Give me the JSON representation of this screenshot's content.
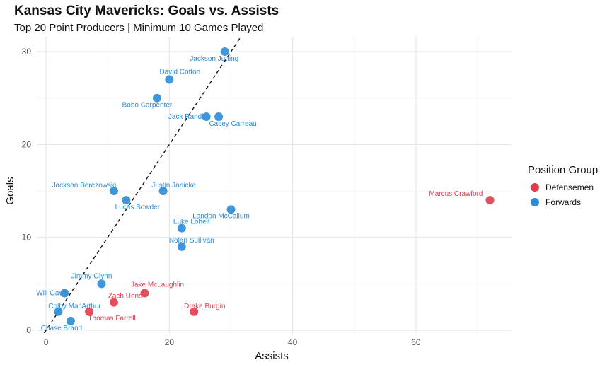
{
  "chart_data": {
    "type": "scatter",
    "title": "Kansas City Mavericks: Goals vs. Assists",
    "subtitle": "Top 20 Point Producers | Minimum 10 Games Played",
    "xlabel": "Assists",
    "ylabel": "Goals",
    "xlim": [
      -1.5,
      75.5
    ],
    "ylim": [
      -0.3,
      31.6
    ],
    "xticks": [
      0,
      20,
      40,
      60
    ],
    "yticks": [
      0,
      10,
      20,
      30
    ],
    "grid": true,
    "legend_title": "Position Group",
    "legend_position": "right",
    "reference_line": {
      "style": "dashed",
      "slope": 1.0,
      "intercept": 0
    },
    "series": [
      {
        "name": "Defensemen",
        "color": "#E23B4E",
        "points": [
          {
            "player": "Marcus Crawford",
            "assists": 72,
            "goals": 14
          },
          {
            "player": "Jake McLaughlin",
            "assists": 16,
            "goals": 4
          },
          {
            "player": "Zach Uens",
            "assists": 11,
            "goals": 3
          },
          {
            "player": "Thomas Farrell",
            "assists": 7,
            "goals": 2
          },
          {
            "player": "Drake Burgin",
            "assists": 24,
            "goals": 2
          }
        ]
      },
      {
        "name": "Forwards",
        "color": "#2A8BD6",
        "points": [
          {
            "player": "Jackson Jutting",
            "assists": 29,
            "goals": 30
          },
          {
            "player": "David Cotton",
            "assists": 20,
            "goals": 27
          },
          {
            "player": "Bobo Carpenter",
            "assists": 18,
            "goals": 25
          },
          {
            "player": "Jack Randl",
            "assists": 26,
            "goals": 23
          },
          {
            "player": "Casey Carreau",
            "assists": 28,
            "goals": 23
          },
          {
            "player": "Jackson Berezowski",
            "assists": 11,
            "goals": 15
          },
          {
            "player": "Justin Janicke",
            "assists": 19,
            "goals": 15
          },
          {
            "player": "Lucas Sowder",
            "assists": 13,
            "goals": 14
          },
          {
            "player": "Landon McCallum",
            "assists": 30,
            "goals": 13
          },
          {
            "player": "Luke Loheit",
            "assists": 22,
            "goals": 11
          },
          {
            "player": "Nolan Sullivan",
            "assists": 22,
            "goals": 9
          },
          {
            "player": "Jimmy Glynn",
            "assists": 9,
            "goals": 5
          },
          {
            "player": "Will Gavin",
            "assists": 3,
            "goals": 4
          },
          {
            "player": "Colby MacArthur",
            "assists": 2,
            "goals": 2
          },
          {
            "player": "Chase Brand",
            "assists": 4,
            "goals": 1
          }
        ]
      }
    ]
  }
}
